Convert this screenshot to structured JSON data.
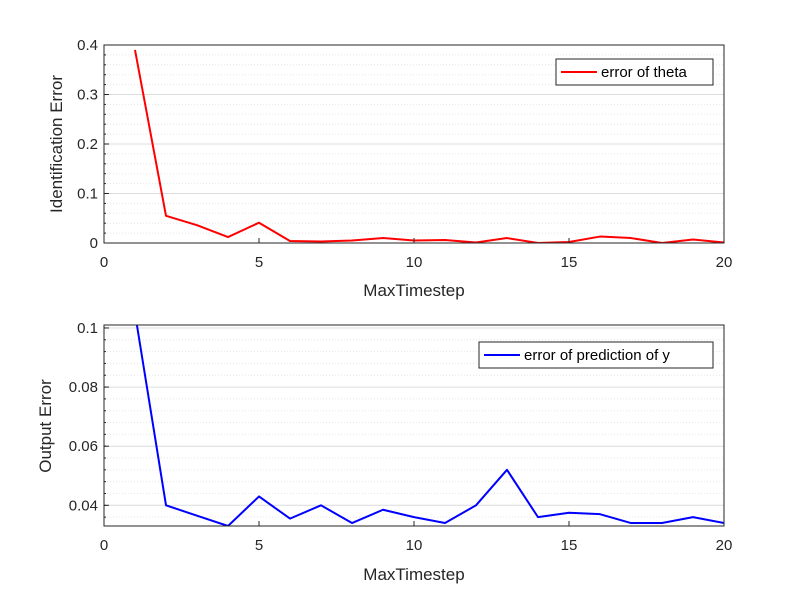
{
  "chart_data": [
    {
      "type": "line",
      "title": "",
      "xlabel": "MaxTimestep",
      "ylabel": "Identification Error",
      "xlim": [
        0,
        20
      ],
      "ylim": [
        0,
        0.4
      ],
      "xticks": [
        "0",
        "5",
        "10",
        "15",
        "20"
      ],
      "yticks": [
        "0",
        "0.1",
        "0.2",
        "0.3",
        "0.4"
      ],
      "grid": "on (major and minor, horizontal)",
      "legend_position": "top-right",
      "series": [
        {
          "name": "error of theta",
          "color": "#ff0000",
          "x": [
            1,
            2,
            3,
            4,
            5,
            6,
            7,
            8,
            9,
            10,
            11,
            12,
            13,
            14,
            15,
            16,
            17,
            18,
            19,
            20
          ],
          "y": [
            0.39,
            0.055,
            0.036,
            0.012,
            0.041,
            0.004,
            0.003,
            0.005,
            0.01,
            0.005,
            0.006,
            0.001,
            0.01,
            0.0,
            0.002,
            0.013,
            0.01,
            0.0,
            0.007,
            0.001
          ]
        }
      ]
    },
    {
      "type": "line",
      "title": "",
      "xlabel": "MaxTimestep",
      "ylabel": "Output Error",
      "xlim": [
        0,
        20
      ],
      "ylim": [
        0.033,
        0.101
      ],
      "xticks": [
        "0",
        "5",
        "10",
        "15",
        "20"
      ],
      "yticks": [
        "0.04",
        "0.06",
        "0.08",
        "0.1"
      ],
      "grid": "on (major and minor, horizontal)",
      "legend_position": "top-right",
      "series": [
        {
          "name": "error of prediction of y",
          "color": "#0000ff",
          "x": [
            1,
            2,
            3,
            4,
            5,
            6,
            7,
            8,
            9,
            10,
            11,
            12,
            13,
            14,
            15,
            16,
            17,
            18,
            19,
            20
          ],
          "y": [
            0.105,
            0.04,
            0.0365,
            0.033,
            0.043,
            0.0355,
            0.04,
            0.034,
            0.0385,
            0.036,
            0.034,
            0.04,
            0.052,
            0.036,
            0.0375,
            0.037,
            0.034,
            0.034,
            0.036,
            0.034
          ]
        }
      ]
    }
  ]
}
